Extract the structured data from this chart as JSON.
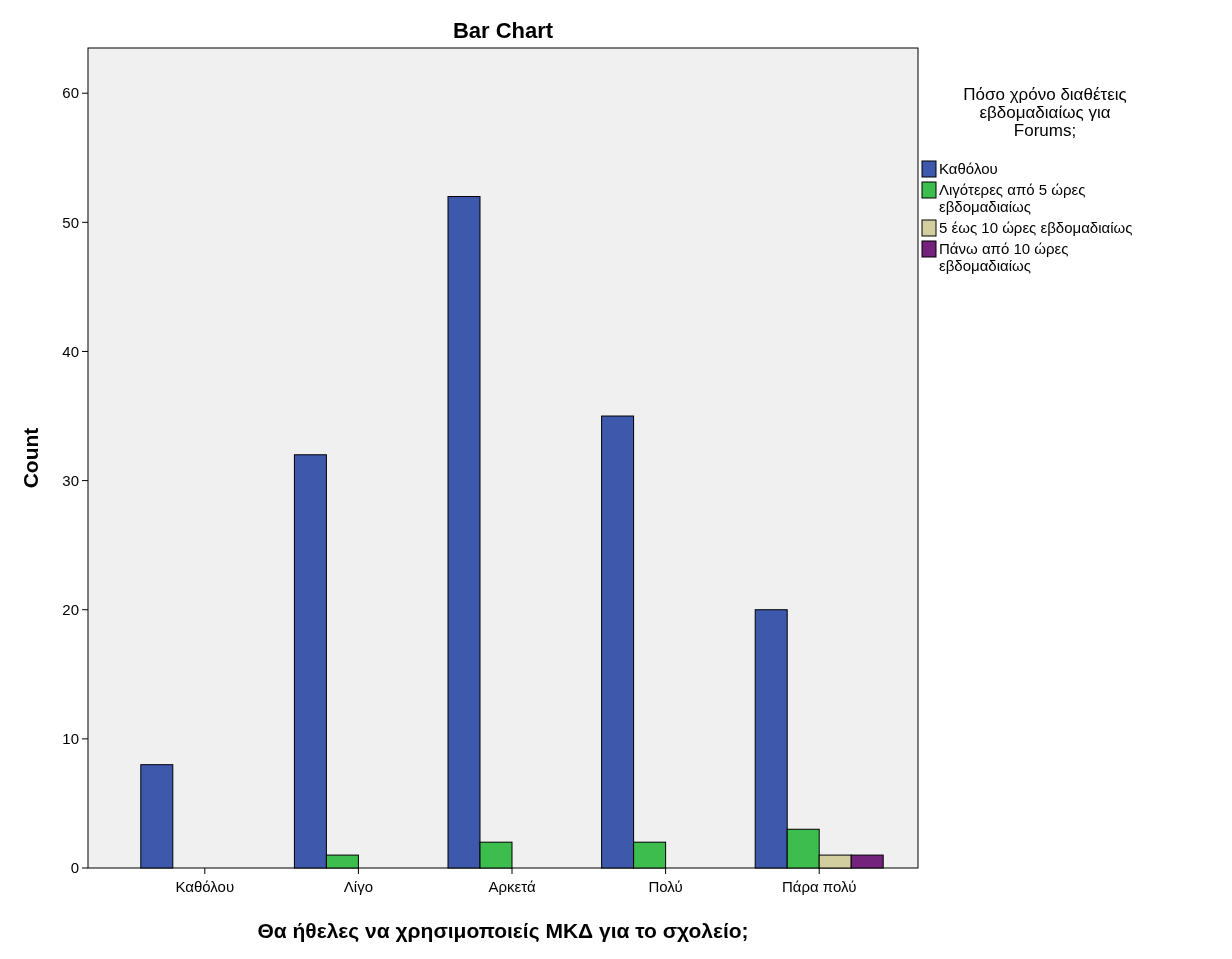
{
  "chart_data": {
    "type": "bar",
    "title": "Bar Chart",
    "xlabel": "Θα ήθελες να χρησιμοποιείς ΜΚΔ για το σχολείο;",
    "ylabel": "Count",
    "legend_title": "Πόσο χρόνο διαθέτεις εβδομαδιαίως για Forums;",
    "categories": [
      "Καθόλου",
      "Λίγο",
      "Αρκετά",
      "Πολύ",
      "Πάρα πολύ"
    ],
    "series": [
      {
        "name": "Καθόλου",
        "color": "#3e58ac",
        "values": [
          8,
          32,
          52,
          35,
          20
        ]
      },
      {
        "name": "Λιγότερες από 5 ώρες εβδομαδιαίως",
        "color": "#3dbd4d",
        "values": [
          0,
          1,
          2,
          2,
          3
        ]
      },
      {
        "name": "5 έως 10 ώρες εβδομαδιαίως",
        "color": "#d3cea0",
        "values": [
          0,
          0,
          0,
          0,
          1
        ]
      },
      {
        "name": "Πάνω από 10 ώρες εβδομαδιαίως",
        "color": "#74237c",
        "values": [
          0,
          0,
          0,
          0,
          1
        ]
      }
    ],
    "ylim": [
      0,
      63.5
    ],
    "yticks": [
      0,
      10,
      20,
      30,
      40,
      50,
      60
    ],
    "grid": false,
    "legend": "right"
  }
}
